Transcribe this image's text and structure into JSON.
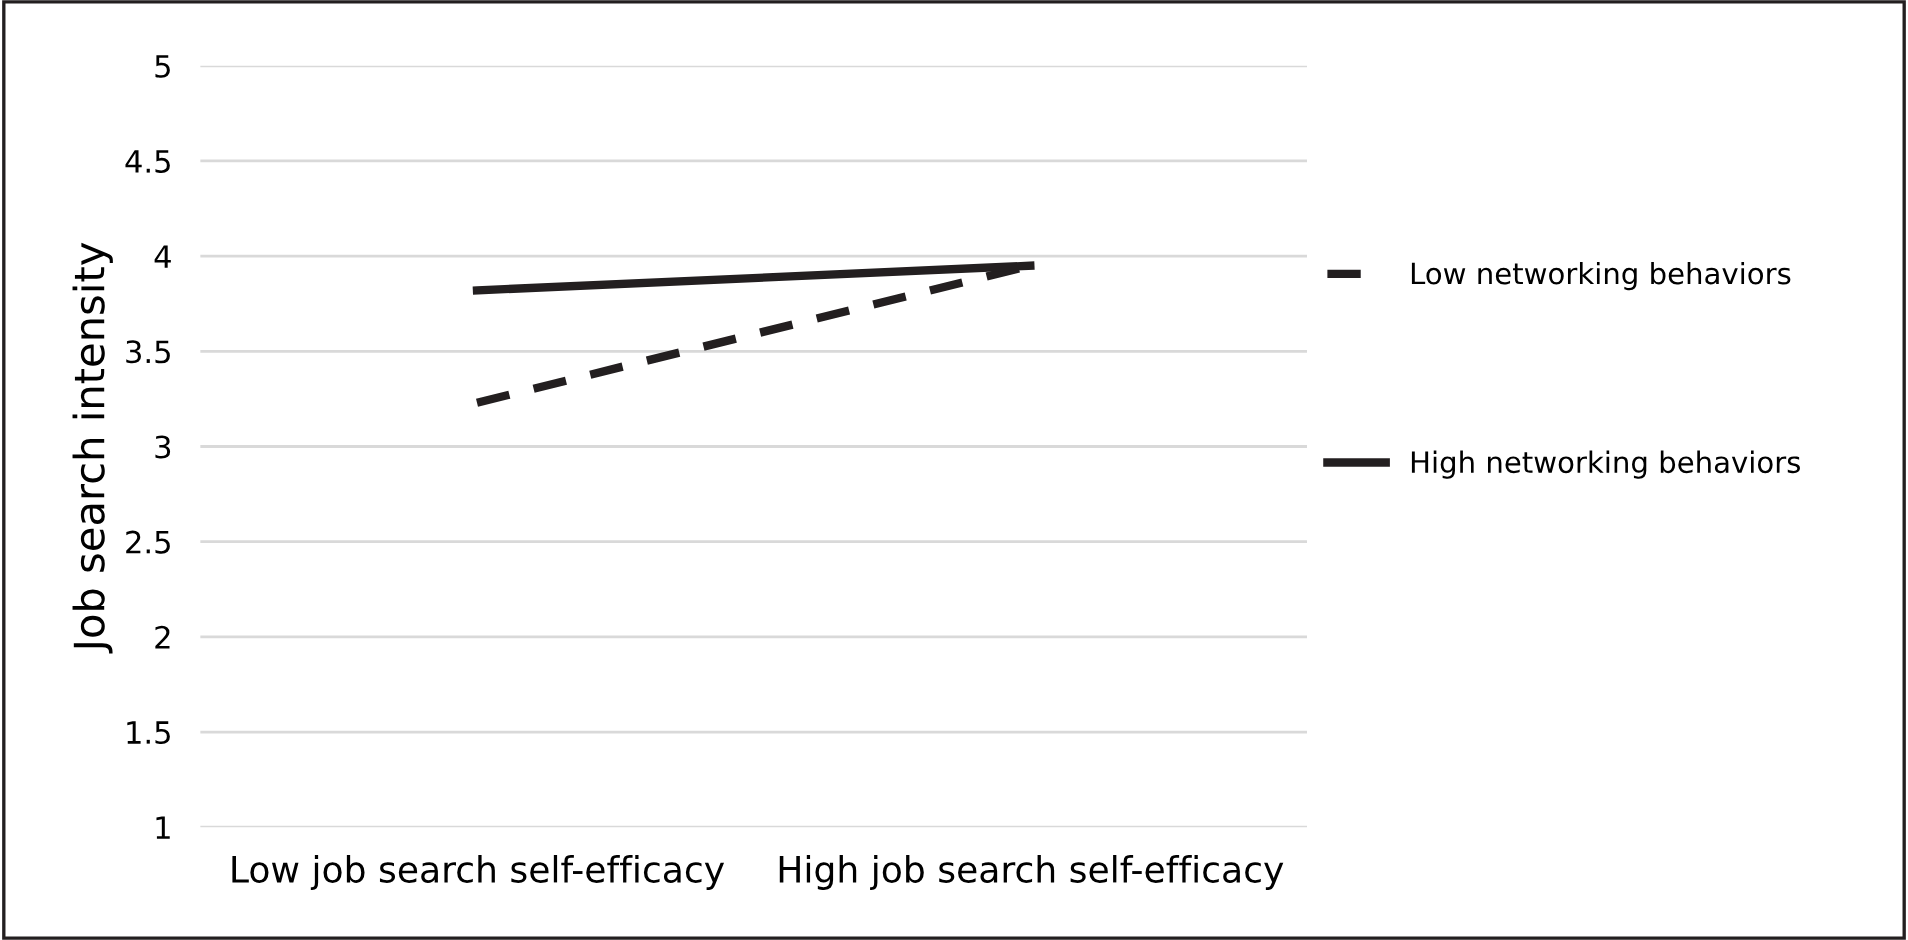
{
  "chart_data": {
    "type": "line",
    "ylabel": "Job search intensity",
    "categories": [
      "Low job search self-efficacy",
      "High job search self-efficacy"
    ],
    "series": [
      {
        "name": "Low networking behaviors",
        "color": "#231f20",
        "values": [
          3.23,
          3.95
        ],
        "line_style": "dashed"
      },
      {
        "name": "High networking behaviors",
        "color": "#231f20",
        "values": [
          3.82,
          3.95
        ],
        "line_style": "solid"
      }
    ],
    "ylim": [
      1,
      5
    ],
    "yticks": [
      1,
      1.5,
      2,
      2.5,
      3,
      3.5,
      4,
      4.5,
      5
    ],
    "grid": "y",
    "legend": "right",
    "marker": "none"
  }
}
